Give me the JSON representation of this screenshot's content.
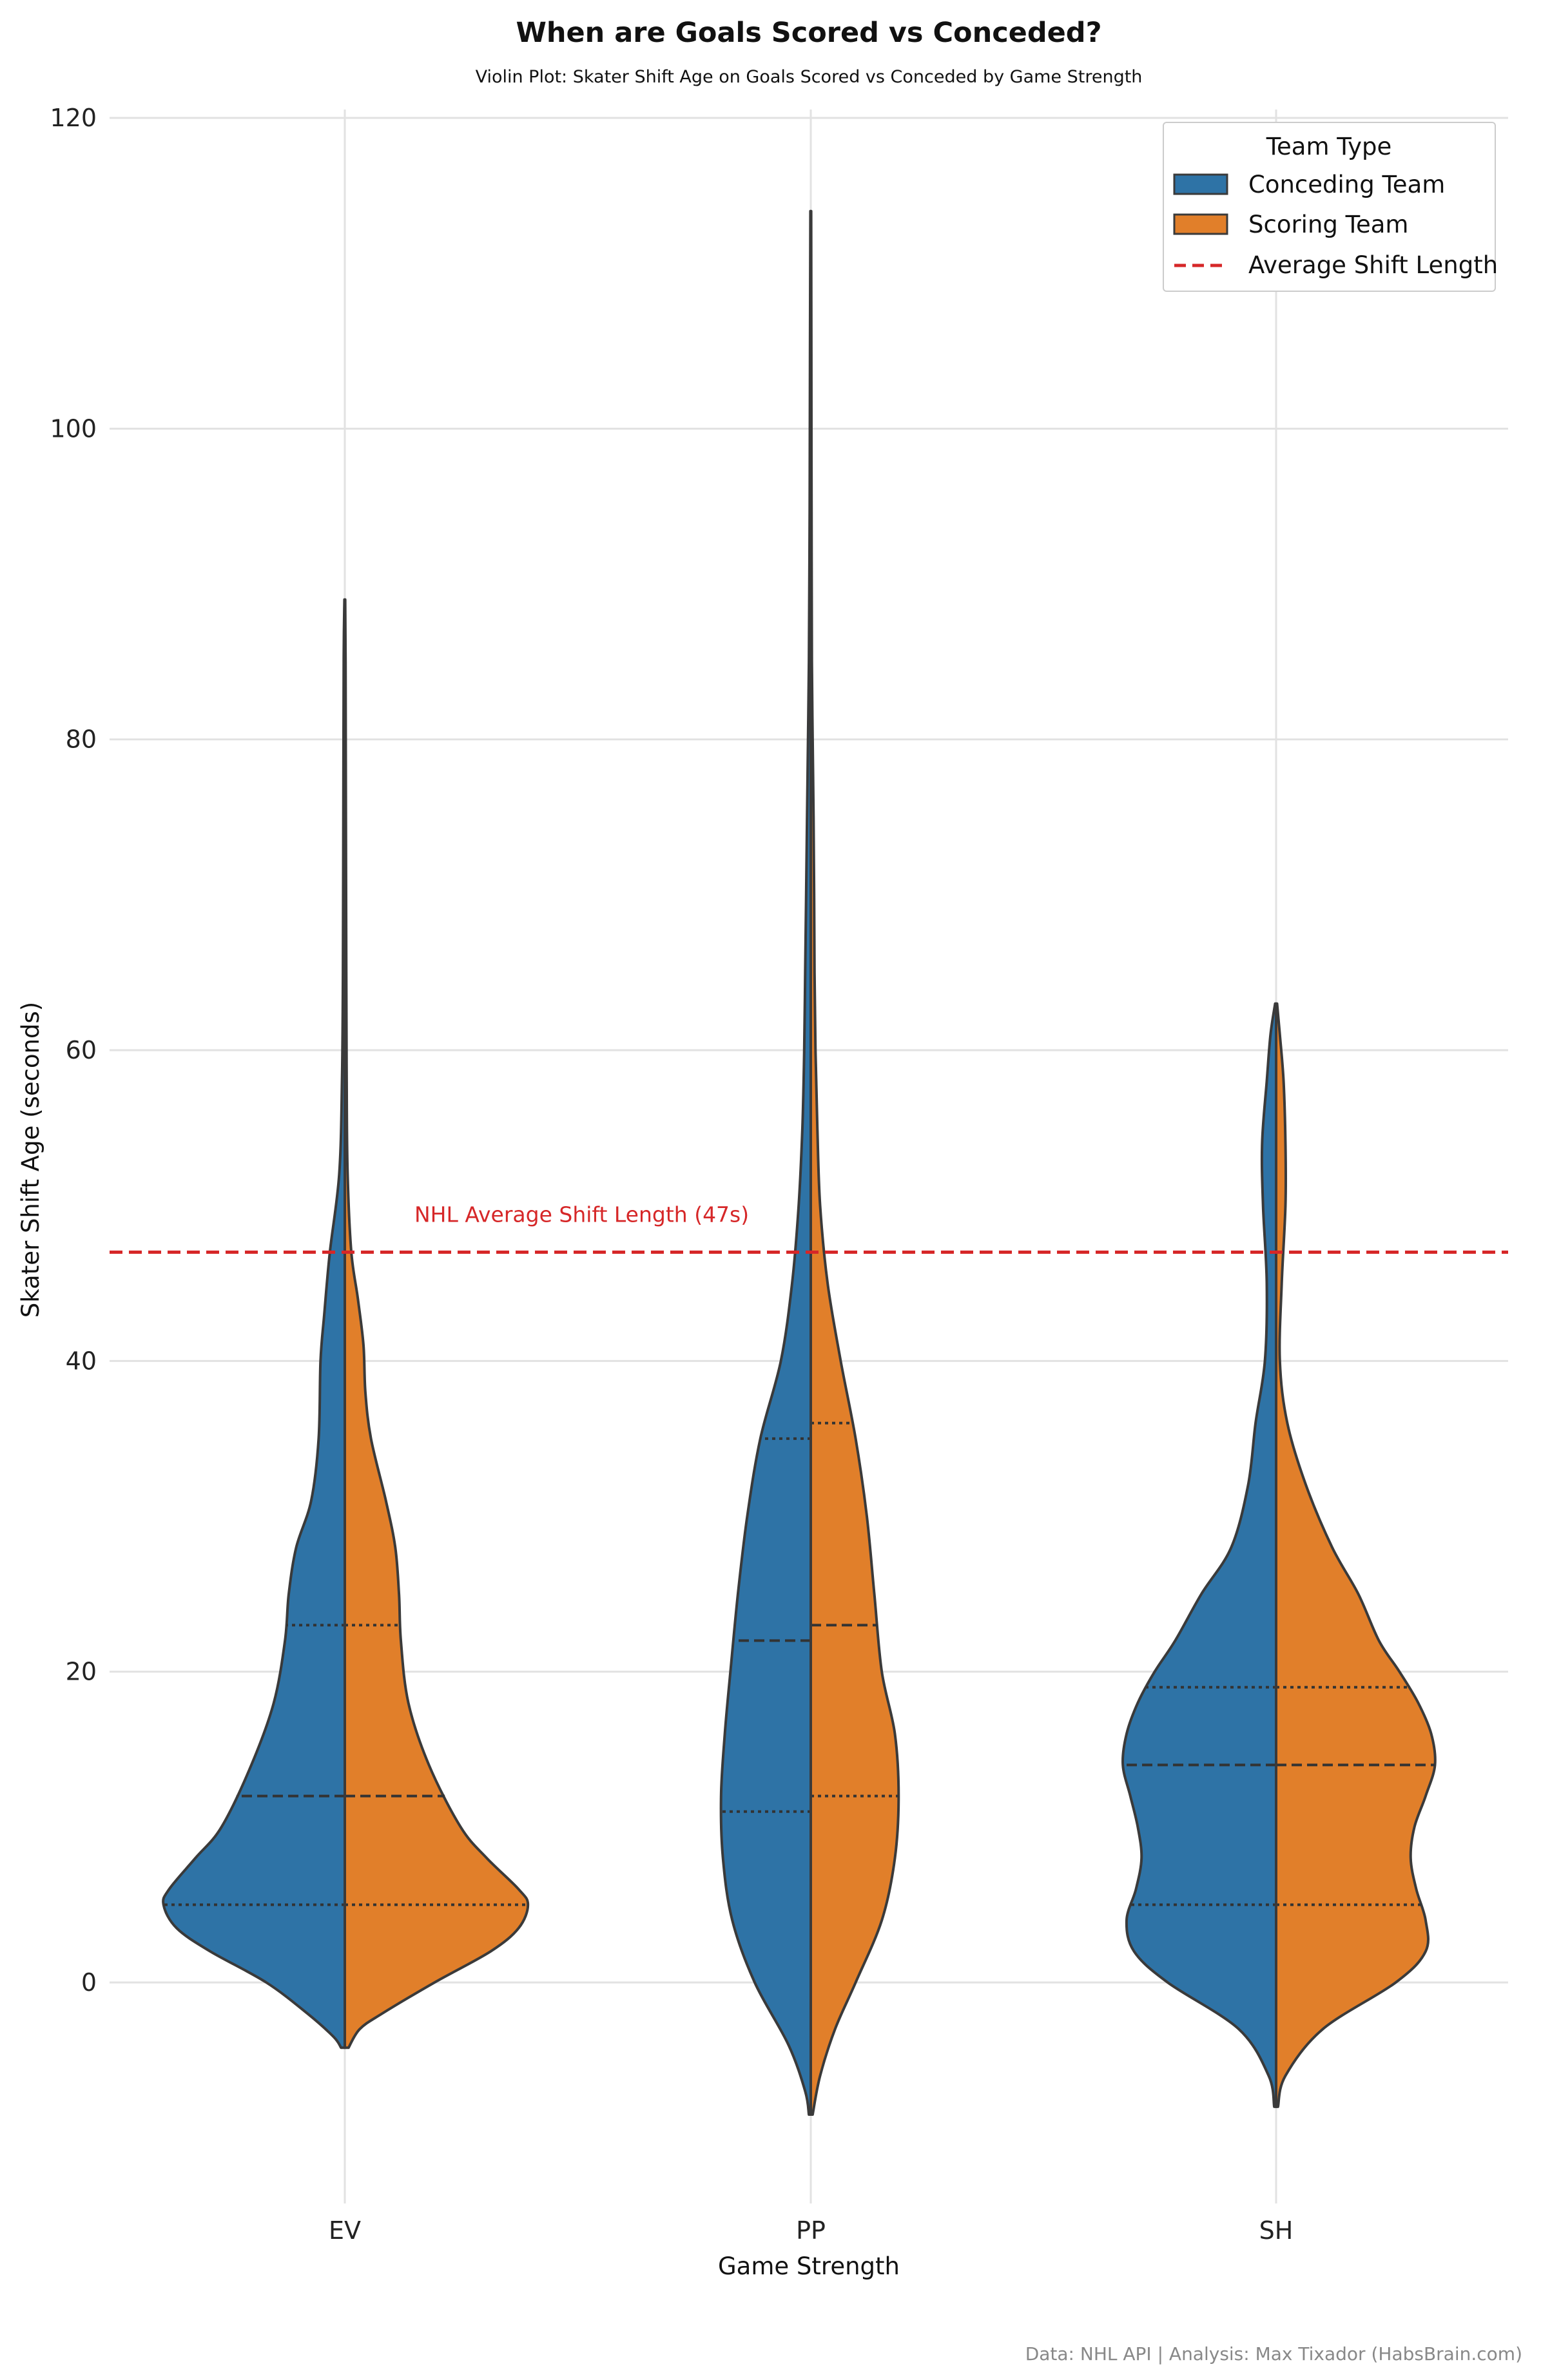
{
  "chart_data": {
    "type": "violin",
    "title": "When are Goals Scored vs Conceded?",
    "subtitle": "Violin Plot: Skater Shift Age on Goals Scored vs Conceded by Game Strength",
    "xlabel": "Game Strength",
    "ylabel": "Skater Shift Age (seconds)",
    "categories": [
      "EV",
      "PP",
      "SH"
    ],
    "ylim": [
      -15,
      121
    ],
    "yticks": [
      0,
      20,
      40,
      60,
      80,
      100,
      120
    ],
    "grid": true,
    "split": true,
    "colors": {
      "conceding": "#2e73a6",
      "scoring": "#e17f2a",
      "avg_line": "#d62728",
      "outline": "#3a3a3a"
    },
    "legend": {
      "title": "Team Type",
      "placement": "top-right",
      "entries": [
        "Conceding Team",
        "Scoring Team",
        "Average Shift Length"
      ]
    },
    "reference_line": {
      "value": 47,
      "label": "NHL Average Shift Length (47s)"
    },
    "series": [
      {
        "name": "Conceding Team",
        "groups": [
          {
            "category": "EV",
            "density": [
              [
                -4.2,
                0.02
              ],
              [
                -3.5,
                0.06
              ],
              [
                -2,
                0.2
              ],
              [
                0,
                0.42
              ],
              [
                2,
                0.72
              ],
              [
                3.5,
                0.9
              ],
              [
                5,
                0.97
              ],
              [
                6,
                0.94
              ],
              [
                8,
                0.8
              ],
              [
                10,
                0.66
              ],
              [
                14,
                0.5
              ],
              [
                18,
                0.38
              ],
              [
                22,
                0.32
              ],
              [
                25,
                0.3
              ],
              [
                28,
                0.26
              ],
              [
                31,
                0.18
              ],
              [
                35,
                0.14
              ],
              [
                40,
                0.13
              ],
              [
                43,
                0.11
              ],
              [
                47,
                0.08
              ],
              [
                52,
                0.03
              ],
              [
                58,
                0.015
              ],
              [
                65,
                0.01
              ],
              [
                75,
                0.008
              ],
              [
                85,
                0.006
              ],
              [
                89,
                0.002
              ]
            ],
            "quartiles": [
              5,
              12,
              23
            ]
          },
          {
            "category": "PP",
            "density": [
              [
                -8.5,
                0.01
              ],
              [
                -7,
                0.03
              ],
              [
                -4,
                0.12
              ],
              [
                0,
                0.3
              ],
              [
                4,
                0.42
              ],
              [
                8,
                0.47
              ],
              [
                12,
                0.48
              ],
              [
                16,
                0.46
              ],
              [
                20,
                0.43
              ],
              [
                25,
                0.39
              ],
              [
                30,
                0.34
              ],
              [
                35,
                0.27
              ],
              [
                40,
                0.16
              ],
              [
                45,
                0.1
              ],
              [
                50,
                0.065
              ],
              [
                55,
                0.045
              ],
              [
                60,
                0.035
              ],
              [
                65,
                0.03
              ],
              [
                70,
                0.025
              ],
              [
                75,
                0.02
              ],
              [
                80,
                0.015
              ],
              [
                85,
                0.01
              ],
              [
                95,
                0.006
              ],
              [
                105,
                0.004
              ],
              [
                114,
                0.002
              ]
            ],
            "quartiles": [
              11,
              22,
              35
            ]
          },
          {
            "category": "SH",
            "density": [
              [
                -8,
                0.01
              ],
              [
                -6,
                0.04
              ],
              [
                -3,
                0.2
              ],
              [
                0,
                0.58
              ],
              [
                2,
                0.76
              ],
              [
                4,
                0.8
              ],
              [
                6,
                0.75
              ],
              [
                8,
                0.72
              ],
              [
                10,
                0.74
              ],
              [
                12,
                0.78
              ],
              [
                14,
                0.82
              ],
              [
                16,
                0.8
              ],
              [
                18,
                0.74
              ],
              [
                20,
                0.65
              ],
              [
                22,
                0.54
              ],
              [
                25,
                0.4
              ],
              [
                28,
                0.24
              ],
              [
                32,
                0.15
              ],
              [
                36,
                0.11
              ],
              [
                40,
                0.06
              ],
              [
                45,
                0.05
              ],
              [
                50,
                0.07
              ],
              [
                54,
                0.075
              ],
              [
                58,
                0.05
              ],
              [
                61,
                0.03
              ],
              [
                63,
                0.005
              ]
            ],
            "quartiles": [
              5,
              14,
              19
            ]
          }
        ]
      },
      {
        "name": "Scoring Team",
        "groups": [
          {
            "category": "EV",
            "density": [
              [
                -4.2,
                0.02
              ],
              [
                -3,
                0.08
              ],
              [
                -2,
                0.2
              ],
              [
                0,
                0.48
              ],
              [
                2,
                0.78
              ],
              [
                3.5,
                0.93
              ],
              [
                5,
                0.98
              ],
              [
                6,
                0.93
              ],
              [
                8,
                0.76
              ],
              [
                10,
                0.62
              ],
              [
                14,
                0.45
              ],
              [
                18,
                0.34
              ],
              [
                22,
                0.3
              ],
              [
                25,
                0.29
              ],
              [
                28,
                0.27
              ],
              [
                31,
                0.22
              ],
              [
                35,
                0.14
              ],
              [
                38,
                0.11
              ],
              [
                41,
                0.1
              ],
              [
                44,
                0.07
              ],
              [
                47,
                0.035
              ],
              [
                52,
                0.015
              ],
              [
                58,
                0.01
              ],
              [
                65,
                0.008
              ],
              [
                75,
                0.006
              ],
              [
                85,
                0.004
              ],
              [
                89,
                0.002
              ]
            ],
            "quartiles": [
              5,
              12,
              23
            ]
          },
          {
            "category": "PP",
            "density": [
              [
                -8.5,
                0.01
              ],
              [
                -6,
                0.05
              ],
              [
                -3,
                0.13
              ],
              [
                0,
                0.24
              ],
              [
                4,
                0.38
              ],
              [
                8,
                0.45
              ],
              [
                12,
                0.47
              ],
              [
                16,
                0.45
              ],
              [
                20,
                0.38
              ],
              [
                25,
                0.34
              ],
              [
                30,
                0.3
              ],
              [
                35,
                0.24
              ],
              [
                40,
                0.16
              ],
              [
                45,
                0.09
              ],
              [
                50,
                0.05
              ],
              [
                55,
                0.035
              ],
              [
                60,
                0.025
              ],
              [
                65,
                0.02
              ],
              [
                70,
                0.018
              ],
              [
                75,
                0.015
              ],
              [
                80,
                0.01
              ],
              [
                85,
                0.006
              ],
              [
                95,
                0.004
              ],
              [
                105,
                0.003
              ],
              [
                114,
                0.002
              ]
            ],
            "quartiles": [
              12,
              23,
              36
            ]
          },
          {
            "category": "SH",
            "density": [
              [
                -8,
                0.01
              ],
              [
                -6,
                0.05
              ],
              [
                -3,
                0.25
              ],
              [
                0,
                0.64
              ],
              [
                2,
                0.8
              ],
              [
                4,
                0.8
              ],
              [
                6,
                0.75
              ],
              [
                8,
                0.72
              ],
              [
                10,
                0.74
              ],
              [
                12,
                0.8
              ],
              [
                14,
                0.85
              ],
              [
                16,
                0.83
              ],
              [
                18,
                0.76
              ],
              [
                20,
                0.66
              ],
              [
                22,
                0.55
              ],
              [
                25,
                0.44
              ],
              [
                28,
                0.3
              ],
              [
                32,
                0.16
              ],
              [
                36,
                0.06
              ],
              [
                40,
                0.02
              ],
              [
                45,
                0.03
              ],
              [
                50,
                0.05
              ],
              [
                54,
                0.05
              ],
              [
                58,
                0.04
              ],
              [
                61,
                0.02
              ],
              [
                63,
                0.005
              ]
            ],
            "quartiles": [
              5,
              14,
              19
            ]
          }
        ]
      }
    ],
    "footer": "Data: NHL API | Analysis: Max Tixador (HabsBrain.com)"
  }
}
